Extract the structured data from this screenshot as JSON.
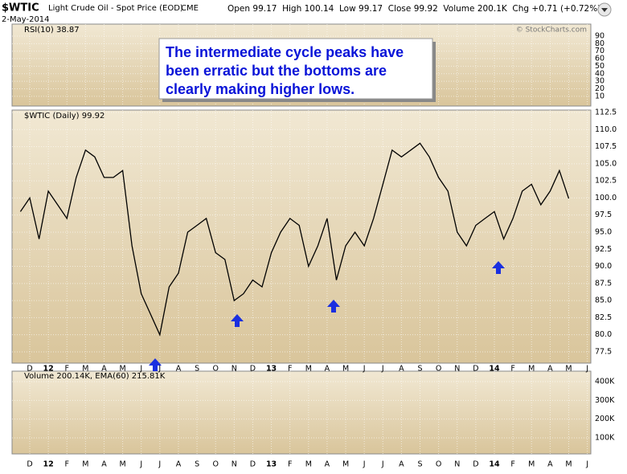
{
  "header": {
    "symbol": "$WTIC",
    "name": "Light Crude Oil - Spot Price (EOD)",
    "exchange": "CME",
    "date": "2-May-2014",
    "quote": "Open 99.17  High 100.14  Low 99.17  Close 99.92  Volume 200.1K  Chg +0.71 (+0.72%)",
    "credit": "© StockCharts.com"
  },
  "chart_data": [
    {
      "type": "line",
      "title": "RSI(10) 38.87",
      "ylim": [
        -3,
        106
      ],
      "yticks": [
        10,
        20,
        30,
        40,
        50,
        60,
        70,
        80,
        90
      ],
      "grid": true
    },
    {
      "type": "line",
      "title": "$WTIC (Daily) 99.92",
      "annotation": [
        "The intermediate cycle peaks have",
        "been erratic but the bottoms are",
        "clearly making higher lows."
      ],
      "categories": [
        null,
        "D",
        null,
        "12",
        null,
        "F",
        null,
        "M",
        null,
        "A",
        null,
        "M",
        null,
        "J",
        null,
        "J",
        null,
        "A",
        null,
        "S",
        null,
        "O",
        null,
        "N",
        null,
        "D",
        null,
        "13",
        null,
        "F",
        null,
        "M",
        null,
        "A",
        null,
        "M",
        null,
        "J",
        null,
        "J",
        null,
        "A",
        null,
        "S",
        null,
        "O",
        null,
        "N",
        null,
        "D",
        null,
        "14",
        null,
        "F",
        null,
        "M",
        null,
        "A",
        null,
        "M",
        null,
        "J"
      ],
      "series": [
        {
          "name": "$WTIC (Daily) 99.92",
          "color": "#000000",
          "values": [
            98,
            100,
            94,
            101,
            99,
            97,
            103,
            107,
            106,
            103,
            103,
            104,
            93,
            86,
            83,
            80,
            87,
            89,
            95,
            96,
            97,
            92,
            91,
            85,
            86,
            88,
            87,
            92,
            95,
            97,
            96,
            90,
            93,
            97,
            88,
            93,
            95,
            93,
            97,
            102,
            107,
            106,
            107,
            108,
            106,
            103,
            101,
            95,
            93,
            96,
            97,
            98,
            94,
            97,
            101,
            102,
            99,
            101,
            104,
            99.92,
            null,
            null
          ]
        }
      ],
      "ylim": [
        75.85,
        112.85
      ],
      "yticks": [
        77.5,
        {
          "value": 80,
          "label": "80.0"
        },
        82.5,
        {
          "value": 85,
          "label": "85.0"
        },
        87.5,
        {
          "value": 90,
          "label": "90.0"
        },
        92.5,
        {
          "value": 95,
          "label": "95.0"
        },
        97.5,
        {
          "value": 100,
          "label": "100.0"
        },
        102.5,
        {
          "value": 105,
          "label": "105.0"
        },
        107.5,
        {
          "value": 110,
          "label": "110.0"
        },
        112.5
      ],
      "grid": true
    },
    {
      "type": "line",
      "title": "Volume 200.14K, EMA(60) 215.81K",
      "ylim": [
        14300,
        455700
      ],
      "yticks": [
        {
          "value": 100000,
          "label": "100K"
        },
        {
          "value": 200000,
          "label": "200K"
        },
        {
          "value": 300000,
          "label": "300K"
        },
        {
          "value": 400000,
          "label": "400K"
        }
      ],
      "grid": true
    }
  ]
}
